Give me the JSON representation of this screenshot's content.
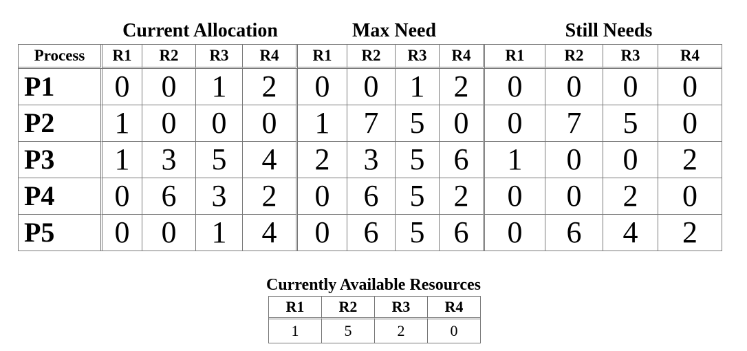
{
  "groups": {
    "allocation": "Current Allocation",
    "max_need": "Max Need",
    "still_needs": "Still Needs"
  },
  "columns": [
    "Process",
    "R1",
    "R2",
    "R3",
    "R4",
    "R1",
    "R2",
    "R3",
    "R4",
    "R1",
    "R2",
    "R3",
    "R4"
  ],
  "rows": [
    {
      "process": "P1",
      "alloc": [
        "0",
        "0",
        "1",
        "2"
      ],
      "max": [
        "0",
        "0",
        "1",
        "2"
      ],
      "still": [
        "0",
        "0",
        "0",
        "0"
      ]
    },
    {
      "process": "P2",
      "alloc": [
        "1",
        "0",
        "0",
        "0"
      ],
      "max": [
        "1",
        "7",
        "5",
        "0"
      ],
      "still": [
        "0",
        "7",
        "5",
        "0"
      ]
    },
    {
      "process": "P3",
      "alloc": [
        "1",
        "3",
        "5",
        "4"
      ],
      "max": [
        "2",
        "3",
        "5",
        "6"
      ],
      "still": [
        "1",
        "0",
        "0",
        "2"
      ]
    },
    {
      "process": "P4",
      "alloc": [
        "0",
        "6",
        "3",
        "2"
      ],
      "max": [
        "0",
        "6",
        "5",
        "2"
      ],
      "still": [
        "0",
        "0",
        "2",
        "0"
      ]
    },
    {
      "process": "P5",
      "alloc": [
        "0",
        "0",
        "1",
        "4"
      ],
      "max": [
        "0",
        "6",
        "5",
        "6"
      ],
      "still": [
        "0",
        "6",
        "4",
        "2"
      ]
    }
  ],
  "available": {
    "title": "Currently Available Resources",
    "columns": [
      "R1",
      "R2",
      "R3",
      "R4"
    ],
    "values": [
      "1",
      "5",
      "2",
      "0"
    ]
  }
}
